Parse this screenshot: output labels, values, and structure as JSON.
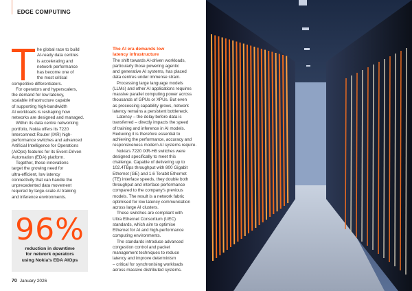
{
  "section_label": "EDGE COMPUTING",
  "dropcap": "T",
  "col1": {
    "first_lines": [
      "he global race to build",
      "AI-ready data centres",
      "is accelerating and",
      "network performance",
      "has become one of",
      "the most critical"
    ],
    "lines": [
      {
        "t": "competitive differentiators.",
        "i": false
      },
      {
        "t": "For operators and hyperscalers,",
        "i": true
      },
      {
        "t": "the demand for low latency,",
        "i": false
      },
      {
        "t": "scalable infrastructure capable",
        "i": false
      },
      {
        "t": "of supporting high-bandwidth",
        "i": false
      },
      {
        "t": "AI workloads is reshaping how",
        "i": false
      },
      {
        "t": "networks are designed and managed.",
        "i": false
      },
      {
        "t": "Within its data centre networking",
        "i": true
      },
      {
        "t": "portfolio, Nokia offers its 7220",
        "i": false
      },
      {
        "t": "Interconnect Router (IXR) high-",
        "i": false
      },
      {
        "t": "performance switches and advanced",
        "i": false
      },
      {
        "t": "Artificial Intelligence for Operations",
        "i": false
      },
      {
        "t": "(AIOps) features for its Event-Driven",
        "i": false
      },
      {
        "t": "Automation (EDA) platform.",
        "i": false
      },
      {
        "t": "Together, these innovations",
        "i": true
      },
      {
        "t": "target the growing need for",
        "i": false
      },
      {
        "t": "ultra-efficient, low latency",
        "i": false
      },
      {
        "t": "connectivity that can handle the",
        "i": false
      },
      {
        "t": "unprecedented data movement",
        "i": false
      },
      {
        "t": "required by large-scale AI training",
        "i": false
      },
      {
        "t": "and inference environments.",
        "i": false
      }
    ]
  },
  "col2": {
    "heading": [
      "The AI era demands low",
      "latency infrastructure"
    ],
    "lines": [
      {
        "t": "The shift towards AI-driven workloads,",
        "i": false
      },
      {
        "t": "particularly those powering agentic",
        "i": false
      },
      {
        "t": "and generative AI systems, has placed",
        "i": false
      },
      {
        "t": "data centres under immense strain.",
        "i": false
      },
      {
        "t": "Processing large language models",
        "i": true
      },
      {
        "t": "(LLMs) and other AI applications requires",
        "i": false
      },
      {
        "t": "massive parallel computing power across",
        "i": false
      },
      {
        "t": "thousands of GPUs or XPUs. But even",
        "i": false
      },
      {
        "t": "as processing capability grows, network",
        "i": false
      },
      {
        "t": "latency remains a persistent bottleneck.",
        "i": false
      },
      {
        "t": "Latency – the delay before data is",
        "i": true
      },
      {
        "t": "transferred – directly impacts the speed",
        "i": false
      },
      {
        "t": "of training and inference in AI models.",
        "i": false
      },
      {
        "t": "Reducing it is therefore essential to",
        "i": false
      },
      {
        "t": "achieving the performance, accuracy and",
        "i": false
      },
      {
        "t": "responsiveness modern AI systems require.",
        "i": false
      },
      {
        "t": "Nokia's 7220 IXR-H6 switches were",
        "i": true
      },
      {
        "t": "designed specifically to meet this",
        "i": false
      },
      {
        "t": "challenge. Capable of delivering up to",
        "i": false
      },
      {
        "t": "102.4TBps throughput with 800 Gigabit",
        "i": false
      },
      {
        "t": "Ethernet (GE) and 1.6 Terabit Ethernet",
        "i": false
      },
      {
        "t": "(TE) interface speeds, they double both",
        "i": false
      },
      {
        "t": "throughput and interface performance",
        "i": false
      },
      {
        "t": "compared to the company's previous",
        "i": false
      },
      {
        "t": "models. The result is a network fabric",
        "i": false
      },
      {
        "t": "optimised for low latency communication",
        "i": false
      },
      {
        "t": "across large AI clusters.",
        "i": false
      },
      {
        "t": "These switches are compliant with",
        "i": true
      },
      {
        "t": "Ultra Ethernet Consortium (UEC)",
        "i": false
      },
      {
        "t": "standards, which aim to optimise",
        "i": false
      },
      {
        "t": "Ethernet for AI and high-performance",
        "i": false
      },
      {
        "t": "computing environments.",
        "i": false
      },
      {
        "t": "The standards introduce advanced",
        "i": true
      },
      {
        "t": "congestion control and packet",
        "i": false
      },
      {
        "t": "management techniques to reduce",
        "i": false
      },
      {
        "t": "latency and improve determinism",
        "i": false
      },
      {
        "t": "– critical for synchronising workloads",
        "i": false
      },
      {
        "t": "across massive distributed systems.",
        "i": false
      }
    ]
  },
  "callout": {
    "stat": "96%",
    "caption": [
      "reduction in downtime",
      "for network operators",
      "using Nokia's EDA AIOps"
    ]
  },
  "footer": {
    "page_number": "70",
    "date": "January 2026"
  },
  "colors": {
    "accent": "#ff4e10",
    "callout_bg": "#ececec"
  }
}
